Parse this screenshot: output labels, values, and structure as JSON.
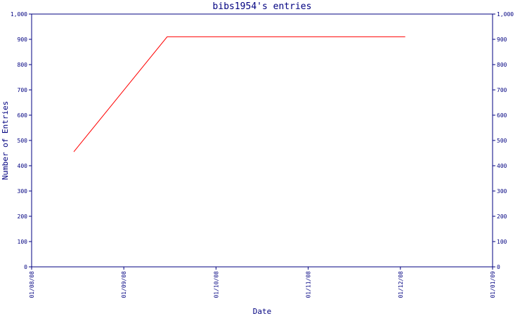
{
  "chart_data": {
    "type": "line",
    "title": "bibs1954's entries",
    "xlabel": "Date",
    "ylabel": "Number of Entries",
    "x_tick_labels": [
      "01/08/08",
      "01/09/08",
      "01/10/08",
      "01/11/08",
      "01/12/08",
      "01/01/09"
    ],
    "y_tick_labels": [
      "0",
      "100",
      "200",
      "300",
      "400",
      "500",
      "600",
      "700",
      "800",
      "900",
      "1,000"
    ],
    "ylim": [
      0,
      1000
    ],
    "xlim": [
      "2008-08-01",
      "2009-01-01"
    ],
    "grid": false,
    "legend": "none",
    "series": [
      {
        "color": "#ff0000",
        "points": [
          {
            "x": "2008-08-15",
            "y": 455
          },
          {
            "x": "2008-09-15",
            "y": 910
          },
          {
            "x": "2008-12-03",
            "y": 910
          }
        ]
      }
    ],
    "colors": {
      "axis": "#000080",
      "line": "#ff0000"
    }
  }
}
